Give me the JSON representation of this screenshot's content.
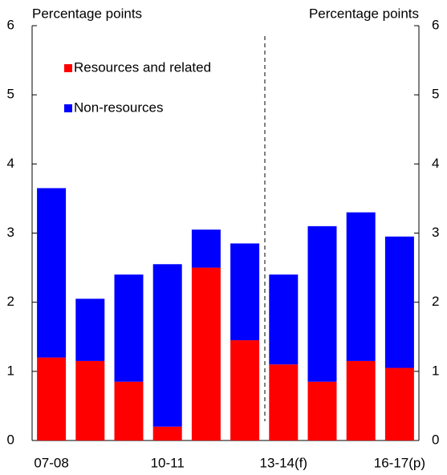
{
  "chart_data": {
    "type": "stacked_bar",
    "y_label_left": "Percentage points",
    "y_label_right": "Percentage points",
    "categories": [
      "07-08",
      null,
      null,
      "10-11",
      null,
      null,
      "13-14(f)",
      null,
      null,
      "16-17(p)"
    ],
    "series": [
      {
        "name": "Resources and related",
        "color": "#ff0000",
        "values": [
          1.2,
          1.15,
          0.85,
          0.2,
          2.5,
          1.45,
          1.1,
          0.85,
          1.15,
          1.05
        ]
      },
      {
        "name": "Non-resources",
        "color": "#0000ff",
        "values": [
          2.45,
          0.9,
          1.55,
          2.35,
          0.55,
          1.4,
          1.3,
          2.25,
          2.15,
          1.9
        ]
      }
    ],
    "ylim": [
      0,
      6
    ],
    "yticks": [
      0,
      1,
      2,
      3,
      4,
      5,
      6
    ],
    "y2lim": [
      0,
      6
    ],
    "y2ticks": [
      0,
      1,
      2,
      3,
      4,
      5,
      6
    ]
  }
}
